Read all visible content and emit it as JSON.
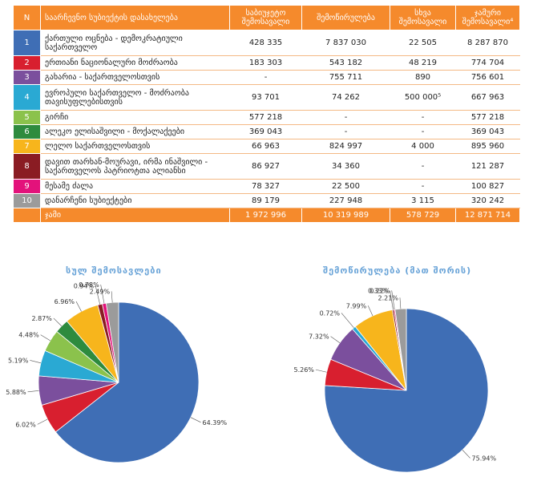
{
  "table": {
    "headers": {
      "n": "N",
      "name": "საარჩევნო სუბიექტის დასახელება",
      "c1": "საბიუჯეტო შემოსავალი",
      "c2": "შემოწირულება",
      "c3": "სხვა შემოსავალი",
      "c4": "ჯამური შემოსავალი⁴"
    },
    "rows": [
      {
        "n": "1",
        "name": "ქართული ოცნება - დემოკრატიული საქართველო",
        "c1": "428 335",
        "c2": "7 837 030",
        "c3": "22 505",
        "c4": "8 287 870",
        "color": "#3f6eb5"
      },
      {
        "n": "2",
        "name": "ერთიანი ნაციონალური მოძრაობა",
        "c1": "183 303",
        "c2": "543 182",
        "c3": "48 219",
        "c4": "774 704",
        "color": "#d81f2f"
      },
      {
        "n": "3",
        "name": "გახარია - საქართველოსთვის",
        "c1": "-",
        "c2": "755 711",
        "c3": "890",
        "c4": "756 601",
        "color": "#7b4f9d"
      },
      {
        "n": "4",
        "name": "ევროპული საქართველო - მოძრაობა თავისუფლებისთვის",
        "c1": "93 701",
        "c2": "74 262",
        "c3": "500 000⁵",
        "c4": "667 963",
        "color": "#2aa9d3"
      },
      {
        "n": "5",
        "name": "გირჩი",
        "c1": "577 218",
        "c2": "-",
        "c3": "-",
        "c4": "577 218",
        "color": "#8bc24c"
      },
      {
        "n": "6",
        "name": "ალეკო ელისაშვილი - მოქალაქეები",
        "c1": "369 043",
        "c2": "-",
        "c3": "-",
        "c4": "369 043",
        "color": "#2e8b3e"
      },
      {
        "n": "7",
        "name": "ლელო საქართველოსთვის",
        "c1": "66 963",
        "c2": "824 997",
        "c3": "4 000",
        "c4": "895 960",
        "color": "#f7b51c"
      },
      {
        "n": "8",
        "name": "დავით თარხან-მოურავი, ირმა ინაშვილი - საქართველოს პატრიოტთა ალიანსი",
        "c1": "86 927",
        "c2": "34 360",
        "c3": "-",
        "c4": "121 287",
        "color": "#8a1c23"
      },
      {
        "n": "9",
        "name": "მესამე ძალა",
        "c1": "78 327",
        "c2": "22 500",
        "c3": "-",
        "c4": "100 827",
        "color": "#e3127b"
      },
      {
        "n": "10",
        "name": "დანარჩენი სუბიექტები",
        "c1": "89 179",
        "c2": "227 948",
        "c3": "3 115",
        "c4": "320 242",
        "color": "#9b9b9b"
      }
    ],
    "total": {
      "label": "ჯამი",
      "c1": "1 972 996",
      "c2": "10 319 989",
      "c3": "578 729",
      "c4": "12 871 714"
    }
  },
  "chart_data": [
    {
      "type": "pie",
      "title": "სულ შემოსავლები",
      "slices": [
        {
          "label": "64.39%",
          "value": 64.39,
          "color": "#3f6eb5"
        },
        {
          "label": "6.02%",
          "value": 6.02,
          "color": "#d81f2f"
        },
        {
          "label": "5.88%",
          "value": 5.88,
          "color": "#7b4f9d"
        },
        {
          "label": "5.19%",
          "value": 5.19,
          "color": "#2aa9d3"
        },
        {
          "label": "4.48%",
          "value": 4.48,
          "color": "#8bc24c"
        },
        {
          "label": "2.87%",
          "value": 2.87,
          "color": "#2e8b3e"
        },
        {
          "label": "6.96%",
          "value": 6.96,
          "color": "#f7b51c"
        },
        {
          "label": "0.94%",
          "value": 0.94,
          "color": "#8a1c23"
        },
        {
          "label": "0.78%",
          "value": 0.78,
          "color": "#e3127b"
        },
        {
          "label": "2.49%",
          "value": 2.49,
          "color": "#9b9b9b"
        }
      ]
    },
    {
      "type": "pie",
      "title": "შემოწირულება (მათ შორის)",
      "slices": [
        {
          "label": "75.94%",
          "value": 75.94,
          "color": "#3f6eb5"
        },
        {
          "label": "5.26%",
          "value": 5.26,
          "color": "#d81f2f"
        },
        {
          "label": "7.32%",
          "value": 7.32,
          "color": "#7b4f9d"
        },
        {
          "label": "0.72%",
          "value": 0.72,
          "color": "#2aa9d3"
        },
        {
          "label": "7.99%",
          "value": 7.99,
          "color": "#f7b51c"
        },
        {
          "label": "0.33%",
          "value": 0.33,
          "color": "#8a1c23"
        },
        {
          "label": "0.22%",
          "value": 0.22,
          "color": "#e3127b"
        },
        {
          "label": "2.21%",
          "value": 2.21,
          "color": "#9b9b9b"
        }
      ]
    }
  ]
}
